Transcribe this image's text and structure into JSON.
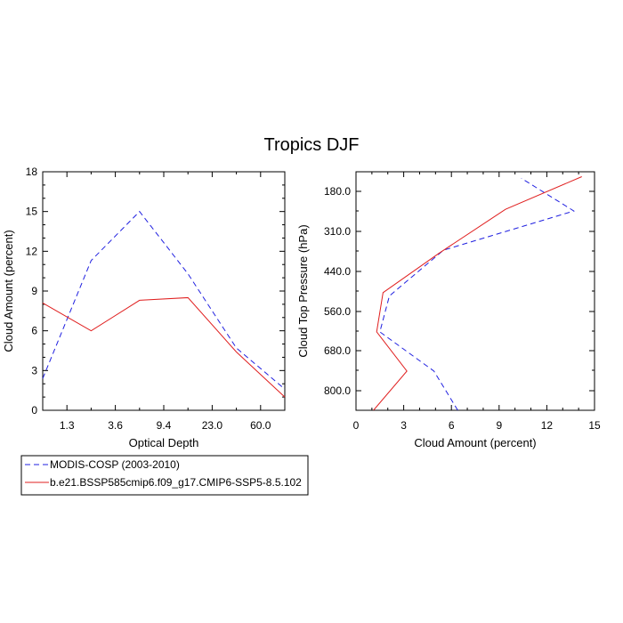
{
  "title": "Tropics DJF",
  "colors": {
    "series_1": "#1f1fe0",
    "series_2": "#e01f1f",
    "axes": "#000000"
  },
  "legend": {
    "placement": "bottom-left",
    "entries": [
      {
        "label": "MODIS-COSP (2003-2010)",
        "color": "#1f1fe0",
        "dash": "dashed"
      },
      {
        "label": "b.e21.BSSP585cmip6.f09_g17.CMIP6-SSP5-8.5.102",
        "color": "#e01f1f",
        "dash": "solid"
      }
    ]
  },
  "chart_data": [
    {
      "type": "line",
      "xlabel": "Optical Depth",
      "ylabel": "Cloud Amount (percent)",
      "categories": [
        "1.3",
        "3.6",
        "9.4",
        "23.0",
        "60.0"
      ],
      "x_index_range": [
        0,
        6
      ],
      "ylim": [
        0,
        18
      ],
      "yticks": [
        "0",
        "3",
        "6",
        "9",
        "12",
        "15",
        "18"
      ],
      "grid": false,
      "series": [
        {
          "name": "MODIS-COSP (2003-2010)",
          "color": "#1f1fe0",
          "dash": "dashed",
          "points": [
            [
              0,
              2.4
            ],
            [
              1,
              11.3
            ],
            [
              2,
              15.0
            ],
            [
              3,
              10.3
            ],
            [
              4,
              4.7
            ],
            [
              5,
              1.6
            ]
          ]
        },
        {
          "name": "b.e21.BSSP585cmip6.f09_g17.CMIP6-SSP5-8.5.102",
          "color": "#e01f1f",
          "dash": "solid",
          "points": [
            [
              0,
              8.1
            ],
            [
              1,
              6.0
            ],
            [
              2,
              8.3
            ],
            [
              3,
              8.5
            ],
            [
              4,
              4.4
            ],
            [
              5,
              1.0
            ]
          ]
        }
      ]
    },
    {
      "type": "line",
      "xlabel": "Cloud Amount (percent)",
      "ylabel": "Cloud Top Pressure (hPa)",
      "xlim": [
        0,
        15
      ],
      "xticks": [
        "0",
        "3",
        "6",
        "9",
        "12",
        "15"
      ],
      "ylim": [
        860,
        130
      ],
      "y_reversed": true,
      "yticks": [
        "180.0",
        "310.0",
        "440.0",
        "560.0",
        "680.0",
        "800.0"
      ],
      "grid": false,
      "series": [
        {
          "name": "MODIS-COSP (2003-2010)",
          "color": "#1f1fe0",
          "dash": "dashed",
          "points": [
            [
              6.4,
              860
            ],
            [
              4.9,
              740
            ],
            [
              1.5,
              620
            ],
            [
              2.1,
              510
            ],
            [
              5.5,
              370
            ],
            [
              13.7,
              250
            ],
            [
              10.4,
              150
            ]
          ]
        },
        {
          "name": "b.e21.BSSP585cmip6.f09_g17.CMIP6-SSP5-8.5.102",
          "color": "#e01f1f",
          "dash": "solid",
          "points": [
            [
              1.1,
              860
            ],
            [
              3.2,
              740
            ],
            [
              1.3,
              620
            ],
            [
              1.7,
              500
            ],
            [
              5.2,
              380
            ],
            [
              9.4,
              245
            ],
            [
              14.2,
              145
            ]
          ]
        }
      ]
    }
  ]
}
